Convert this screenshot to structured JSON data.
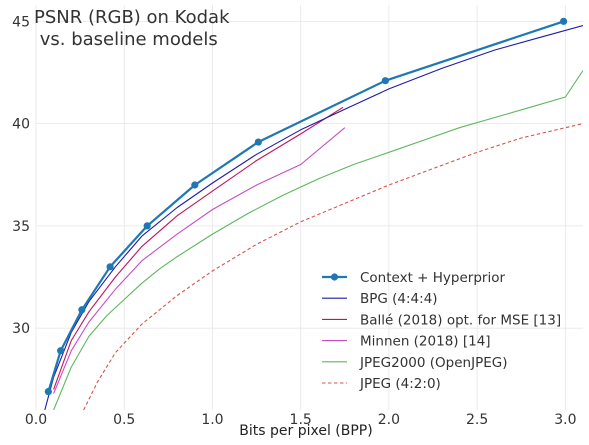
{
  "chart_data": {
    "type": "line",
    "title_lines": [
      "PSNR (RGB) on Kodak",
      " vs. baseline models"
    ],
    "xlabel": "Bits per pixel (BPP)",
    "ylabel": "",
    "xlim": [
      0.0,
      3.1
    ],
    "ylim": [
      26.0,
      45.8
    ],
    "xticks": [
      {
        "value": 0.0,
        "label": "0.0"
      },
      {
        "value": 0.5,
        "label": "0.5"
      },
      {
        "value": 1.0,
        "label": "1.0"
      },
      {
        "value": 1.5,
        "label": "1.5"
      },
      {
        "value": 2.0,
        "label": "2.0"
      },
      {
        "value": 2.5,
        "label": "2.5"
      },
      {
        "value": 3.0,
        "label": "3.0"
      }
    ],
    "yticks": [
      {
        "value": 30,
        "label": "30"
      },
      {
        "value": 35,
        "label": "35"
      },
      {
        "value": 40,
        "label": "40"
      },
      {
        "value": 45,
        "label": "45"
      }
    ],
    "grid": true,
    "legend_position": "bottom-right",
    "series": [
      {
        "name": "Context + Hyperprior",
        "color": "#1f77b4",
        "style": "solid-markers",
        "x": [
          0.07,
          0.14,
          0.26,
          0.42,
          0.63,
          0.9,
          1.26,
          1.98,
          2.99
        ],
        "y": [
          26.9,
          28.9,
          30.9,
          33.0,
          35.0,
          37.0,
          39.1,
          42.1,
          45.0
        ]
      },
      {
        "name": "BPG (4:4:4)",
        "color": "#1c1ca8",
        "style": "solid",
        "x": [
          0.05,
          0.1,
          0.2,
          0.3,
          0.45,
          0.6,
          0.8,
          1.0,
          1.25,
          1.5,
          1.75,
          2.0,
          2.3,
          2.6,
          2.85,
          3.1
        ],
        "y": [
          26.0,
          27.6,
          29.8,
          31.3,
          33.0,
          34.5,
          35.9,
          37.1,
          38.5,
          39.7,
          40.7,
          41.7,
          42.7,
          43.6,
          44.2,
          44.8
        ]
      },
      {
        "name": "Ballé (2018) opt. for MSE [13]",
        "color": "#c0145a",
        "style": "solid",
        "x": [
          0.1,
          0.2,
          0.3,
          0.45,
          0.6,
          0.8,
          1.0,
          1.25,
          1.5,
          1.74
        ],
        "y": [
          27.0,
          29.4,
          30.8,
          32.5,
          34.0,
          35.5,
          36.7,
          38.2,
          39.5,
          40.8
        ]
      },
      {
        "name": "Minnen (2018) [14]",
        "color": "#c44ec8",
        "style": "solid",
        "x": [
          0.1,
          0.2,
          0.3,
          0.45,
          0.6,
          0.8,
          1.0,
          1.25,
          1.5,
          1.75
        ],
        "y": [
          26.8,
          28.9,
          30.3,
          31.9,
          33.3,
          34.6,
          35.8,
          37.0,
          38.0,
          39.8
        ]
      },
      {
        "name": "JPEG2000 (OpenJPEG)",
        "color": "#5cb85c",
        "style": "solid",
        "x": [
          0.1,
          0.2,
          0.3,
          0.4,
          0.5,
          0.6,
          0.7,
          0.8,
          1.0,
          1.2,
          1.4,
          1.6,
          1.8,
          2.0,
          2.2,
          2.4,
          2.6,
          2.8,
          3.0,
          3.1
        ],
        "y": [
          26.0,
          28.1,
          29.6,
          30.6,
          31.4,
          32.2,
          32.9,
          33.5,
          34.6,
          35.6,
          36.5,
          37.3,
          38.0,
          38.6,
          39.2,
          39.8,
          40.3,
          40.8,
          41.3,
          42.6
        ]
      },
      {
        "name": "JPEG (4:2:0)",
        "color": "#d9534f",
        "style": "dashed",
        "x": [
          0.27,
          0.35,
          0.45,
          0.6,
          0.8,
          1.0,
          1.25,
          1.5,
          1.75,
          2.0,
          2.25,
          2.5,
          2.75,
          3.0,
          3.1
        ],
        "y": [
          26.0,
          27.4,
          28.8,
          30.2,
          31.6,
          32.8,
          34.1,
          35.2,
          36.1,
          37.0,
          37.8,
          38.6,
          39.3,
          39.8,
          40.0
        ]
      }
    ]
  }
}
